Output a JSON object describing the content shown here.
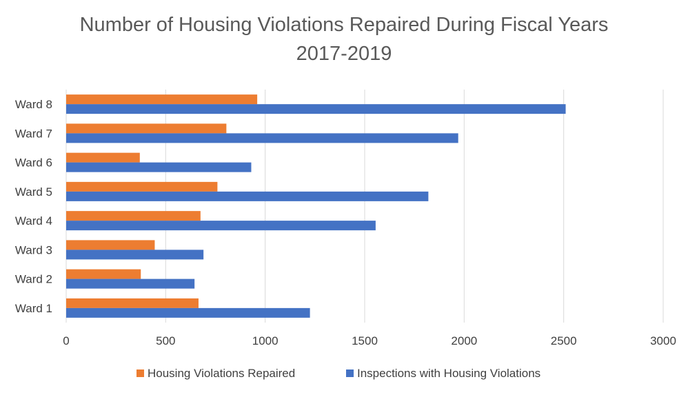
{
  "chart_data": {
    "type": "bar",
    "orientation": "horizontal",
    "title_lines": [
      "Number of Housing Violations Repaired  During Fiscal Years",
      "2017-2019"
    ],
    "categories": [
      "Ward 1",
      "Ward 2",
      "Ward 3",
      "Ward 4",
      "Ward 5",
      "Ward 6",
      "Ward 7",
      "Ward 8"
    ],
    "series": [
      {
        "name": "Housing Violations Repaired",
        "color": "#ED7D31",
        "values": [
          665,
          375,
          445,
          675,
          760,
          370,
          805,
          960
        ]
      },
      {
        "name": "Inspections with Housing Violations",
        "color": "#4472C4",
        "values": [
          1225,
          645,
          690,
          1555,
          1820,
          930,
          1970,
          2510
        ]
      }
    ],
    "xlim": [
      0,
      3000
    ],
    "xticks": [
      0,
      500,
      1000,
      1500,
      2000,
      2500,
      3000
    ],
    "grid": true,
    "legend_position": "bottom"
  }
}
